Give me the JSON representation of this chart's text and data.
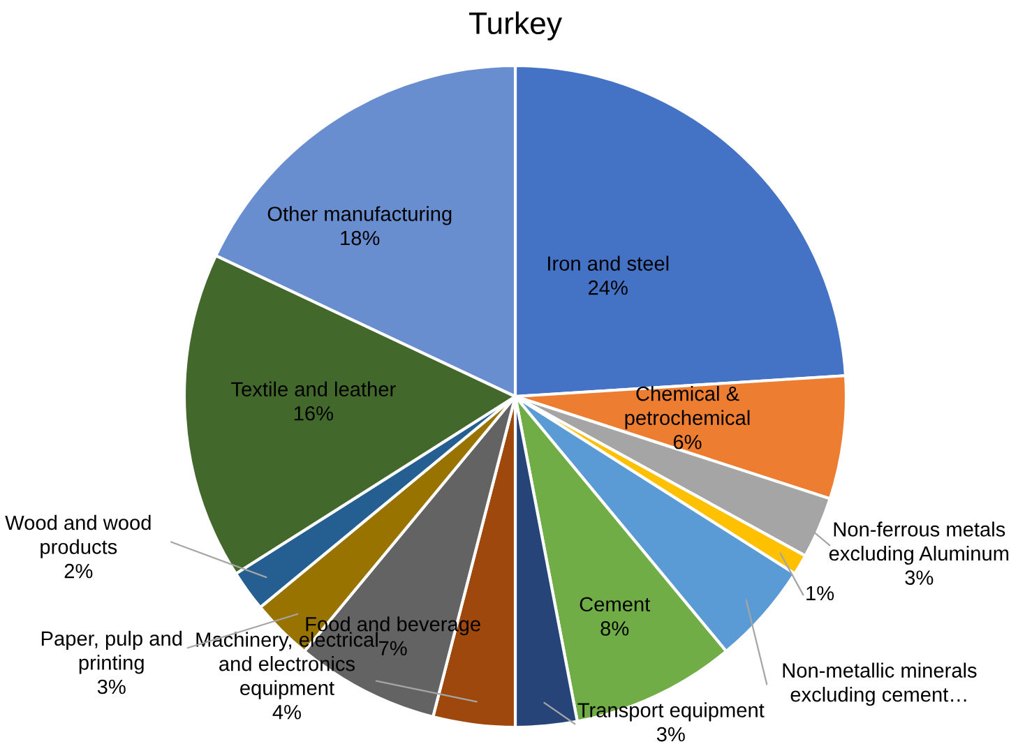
{
  "chart_data": {
    "type": "pie",
    "title": "Turkey",
    "categories": [
      "Iron and steel",
      "Chemical & petrochemical",
      "Non-ferrous metals excluding Aluminum",
      null,
      "Non-metallic minerals excluding cement…",
      "Cement",
      "Transport equipment",
      "Machinery, electrical and electronics equipment",
      "Food and beverage",
      "Paper, pulp and printing",
      "Wood and wood products",
      "Textile and leather",
      "Other manufacturing"
    ],
    "values": [
      24,
      6,
      3,
      1,
      5,
      8,
      3,
      4,
      7,
      3,
      2,
      16,
      18
    ],
    "value_labels": [
      "24%",
      "6%",
      "3%",
      "1%",
      null,
      "8%",
      "3%",
      "4%",
      "7%",
      "3%",
      "2%",
      "16%",
      "18%"
    ],
    "colors": [
      "#4472c4",
      "#ed7d31",
      "#a5a5a5",
      "#ffc000",
      "#5b9bd5",
      "#70ad47",
      "#264478",
      "#9e480e",
      "#636363",
      "#997300",
      "#255e91",
      "#43682b",
      "#698ed0"
    ],
    "legend": false
  }
}
